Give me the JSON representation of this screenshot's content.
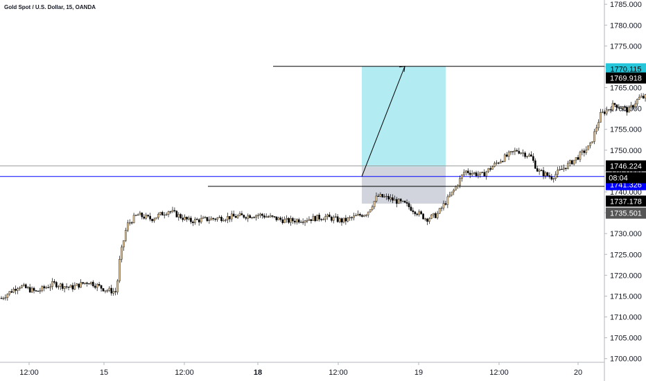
{
  "header": {
    "symbol_title": "Gold Spot / U.S. Dollar, 15, OANDA"
  },
  "colors": {
    "background": "#ffffff",
    "candle_up": "#e8c690",
    "candle_down": "#000000",
    "target_zone": "#b2ebf2",
    "stop_zone": "#d1d4dc",
    "current_price_line": "#0000ff",
    "reference_line": "#9e9e9e",
    "axis_text": "#131722"
  },
  "chart_data": {
    "type": "candlestick",
    "title": "Gold Spot / U.S. Dollar, 15, OANDA",
    "y_axis": {
      "ylim": [
        1698.5,
        1786.5
      ],
      "ticks": [
        "1700.000",
        "1705.000",
        "1710.000",
        "1715.000",
        "1720.000",
        "1725.000",
        "1730.000",
        "1735.000",
        "1740.000",
        "1745.000",
        "1750.000",
        "1755.000",
        "1760.000",
        "1765.000",
        "1770.000",
        "1775.000",
        "1780.000",
        "1785.000"
      ],
      "tick_values": [
        1700,
        1705,
        1710,
        1715,
        1720,
        1725,
        1730,
        1735,
        1740,
        1745,
        1750,
        1755,
        1760,
        1765,
        1770,
        1775,
        1780,
        1785
      ]
    },
    "x_axis": {
      "ticks": [
        "12:00",
        "15",
        "12:00",
        "18",
        "12:00",
        "19",
        "12:00",
        "20"
      ],
      "bold_ticks": [
        "18"
      ]
    },
    "price_path_hint": [
      [
        0,
        1714.5
      ],
      [
        10,
        1717.5
      ],
      [
        20,
        1716.0
      ],
      [
        30,
        1718.0
      ],
      [
        40,
        1717.0
      ],
      [
        50,
        1718.5
      ],
      [
        60,
        1716.5
      ],
      [
        66,
        1716.0
      ],
      [
        68,
        1724.0
      ],
      [
        72,
        1732.0
      ],
      [
        78,
        1734.5
      ],
      [
        86,
        1733.5
      ],
      [
        96,
        1735.5
      ],
      [
        108,
        1733.0
      ],
      [
        120,
        1733.5
      ],
      [
        132,
        1734.0
      ],
      [
        148,
        1734.5
      ],
      [
        164,
        1733.0
      ],
      [
        176,
        1733.5
      ],
      [
        186,
        1734.0
      ],
      [
        196,
        1733.0
      ],
      [
        210,
        1735.0
      ],
      [
        216,
        1739.0
      ],
      [
        222,
        1738.5
      ],
      [
        232,
        1737.0
      ],
      [
        244,
        1733.5
      ],
      [
        250,
        1734.5
      ],
      [
        260,
        1740.5
      ],
      [
        266,
        1745.0
      ],
      [
        276,
        1744.0
      ],
      [
        286,
        1747.5
      ],
      [
        296,
        1750.0
      ],
      [
        304,
        1748.5
      ],
      [
        308,
        1745.0
      ],
      [
        316,
        1743.5
      ],
      [
        322,
        1745.5
      ],
      [
        330,
        1748.0
      ],
      [
        338,
        1751.0
      ],
      [
        344,
        1758.5
      ],
      [
        352,
        1761.0
      ],
      [
        360,
        1759.5
      ],
      [
        366,
        1762.5
      ],
      [
        374,
        1763.0
      ],
      [
        382,
        1761.0
      ],
      [
        390,
        1763.0
      ],
      [
        400,
        1763.5
      ],
      [
        410,
        1764.0
      ],
      [
        418,
        1763.5
      ],
      [
        424,
        1764.5
      ],
      [
        432,
        1763.5
      ],
      [
        436,
        1755.0
      ],
      [
        441,
        1751.5
      ],
      [
        444,
        1746.0
      ]
    ],
    "annotations": {
      "current_price": "1743.686",
      "countdown": "08:04",
      "price_labels": [
        "1770.115",
        "1769.918",
        "1746.224",
        "1743.686",
        "1741.326",
        "1737.178",
        "1735.501"
      ],
      "long_position": {
        "entry": 1743.686,
        "target": 1770.115,
        "stop": 1737.178
      },
      "horizontal_lines": [
        1770.115,
        1746.224,
        1743.686,
        1741.326
      ]
    }
  }
}
